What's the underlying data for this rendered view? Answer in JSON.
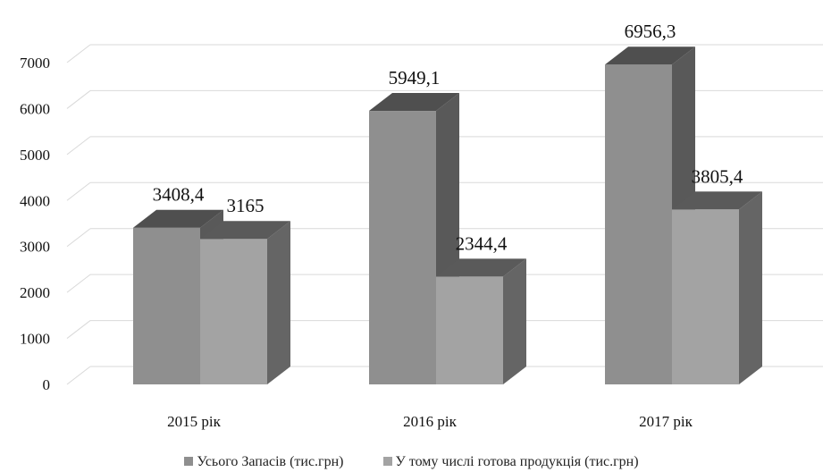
{
  "chart_data": {
    "type": "bar",
    "style": "3d-clustered-column",
    "categories": [
      "2015 рік",
      "2016 рік",
      "2017 рік"
    ],
    "series": [
      {
        "name": "Усього Запасів (тис.грн)",
        "values": [
          3408.4,
          5949.1,
          6956.3
        ],
        "labels": [
          "3408,4",
          "5949,1",
          "6956,3"
        ],
        "color": "#8f8f8f"
      },
      {
        "name": "У тому числі готова продукція (тис.грн)",
        "values": [
          3165,
          2344.4,
          3805.4
        ],
        "labels": [
          "3165",
          "2344,4",
          "3805,4"
        ],
        "color": "#a3a3a3"
      }
    ],
    "yticks": [
      "0",
      "1000",
      "2000",
      "3000",
      "4000",
      "5000",
      "6000",
      "7000"
    ],
    "ylim": [
      0,
      7000
    ],
    "grid": true,
    "legend_position": "bottom",
    "title": "",
    "xlabel": "",
    "ylabel": ""
  }
}
